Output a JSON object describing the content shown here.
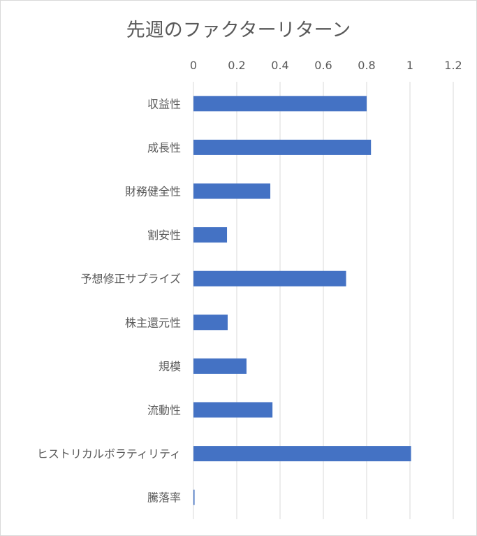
{
  "chart_data": {
    "type": "bar",
    "orientation": "horizontal",
    "title": "先週のファクターリターン",
    "categories": [
      "収益性",
      "成長性",
      "財務健全性",
      "割安性",
      "予想修正サプライズ",
      "株主還元性",
      "規模",
      "流動性",
      "ヒストリカルボラティリティ",
      "騰落率"
    ],
    "values": [
      0.8,
      0.82,
      0.355,
      0.155,
      0.705,
      0.158,
      0.245,
      0.365,
      1.005,
      0.005
    ],
    "xlim": [
      0,
      1.2
    ],
    "xticks": [
      "0",
      "0.2",
      "0.4",
      "0.6",
      "0.8",
      "1",
      "1.2"
    ],
    "xaxis_position": "top",
    "grid": true,
    "legend": "none",
    "bar_color": "#4472c4"
  }
}
